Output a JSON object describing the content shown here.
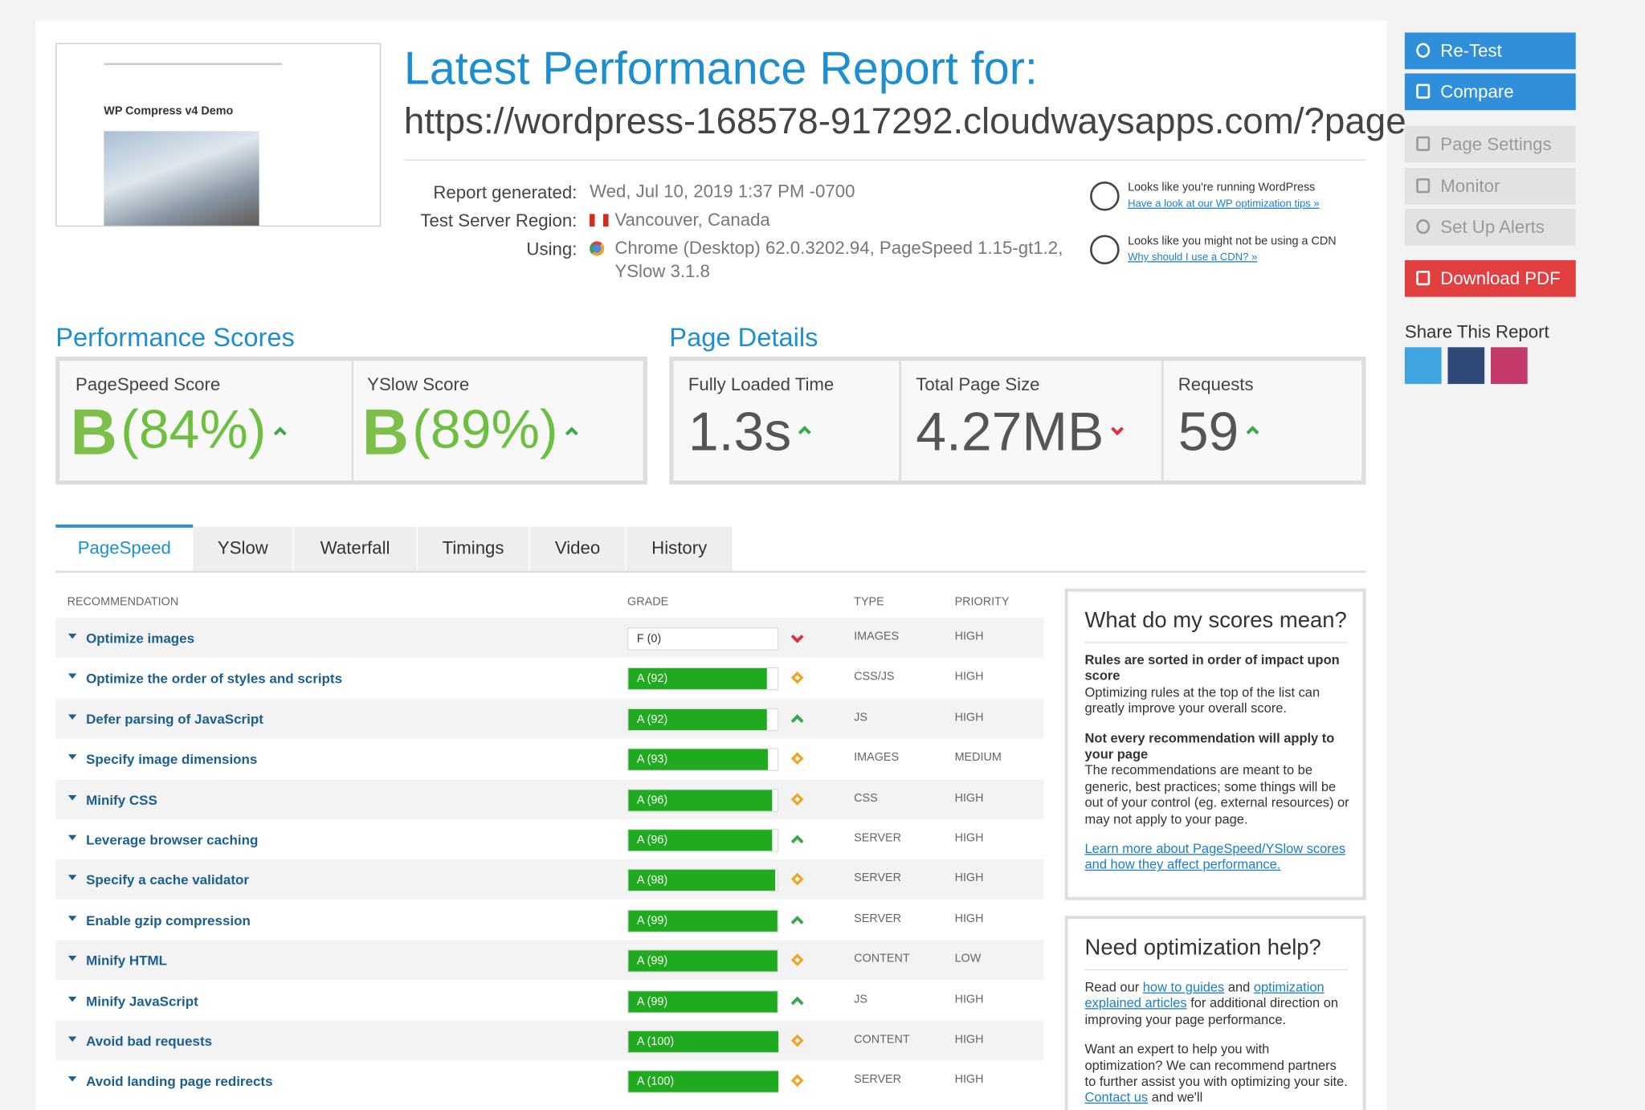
{
  "header": {
    "title": "Latest Performance Report for:",
    "url": "https://wordpress-168578-917292.cloudwaysapps.com/?page…"
  },
  "thumbnail": {
    "site_title": "WP Compress v4 Demo"
  },
  "report": [
    {
      "label": "Report generated:",
      "value": "Wed, Jul 10, 2019 1:37 PM -0700"
    },
    {
      "label": "Test Server Region:",
      "value": "Vancouver, Canada"
    },
    {
      "label": "Using:",
      "value": "Chrome (Desktop) 62.0.3202.94, PageSpeed 1.15-gt1.2, YSlow 3.1.8"
    }
  ],
  "notices": [
    {
      "text": "Looks like you're running WordPress",
      "link": "Have a look at our WP optimization tips »"
    },
    {
      "text": "Looks like you might not be using a CDN",
      "link": "Why should I use a CDN? »"
    }
  ],
  "sidebar": {
    "buttons": [
      "Re-Test",
      "Compare",
      "Page Settings",
      "Monitor",
      "Set Up Alerts",
      "Download PDF"
    ],
    "share": "Share This Report"
  },
  "scores": {
    "title": "Performance Scores",
    "items": [
      {
        "label": "PageSpeed Score",
        "grade": "B",
        "percent": "(84%)",
        "trend": "up"
      },
      {
        "label": "YSlow Score",
        "grade": "B",
        "percent": "(89%)",
        "trend": "up"
      }
    ]
  },
  "details": {
    "title": "Page Details",
    "items": [
      {
        "label": "Fully Loaded Time",
        "value": "1.3s",
        "trend": "up"
      },
      {
        "label": "Total Page Size",
        "value": "4.27MB",
        "trend": "down"
      },
      {
        "label": "Requests",
        "value": "59",
        "trend": "up"
      }
    ]
  },
  "tabs": [
    "PageSpeed",
    "YSlow",
    "Waterfall",
    "Timings",
    "Video",
    "History"
  ],
  "table": {
    "headers": [
      "RECOMMENDATION",
      "GRADE",
      "TYPE",
      "PRIORITY"
    ],
    "rows": [
      {
        "name": "Optimize images",
        "grade": "F (0)",
        "score": 0,
        "trend": "down",
        "type": "IMAGES",
        "priority": "HIGH"
      },
      {
        "name": "Optimize the order of styles and scripts",
        "grade": "A (92)",
        "score": 92,
        "trend": "same",
        "type": "CSS/JS",
        "priority": "HIGH"
      },
      {
        "name": "Defer parsing of JavaScript",
        "grade": "A (92)",
        "score": 92,
        "trend": "up",
        "type": "JS",
        "priority": "HIGH"
      },
      {
        "name": "Specify image dimensions",
        "grade": "A (93)",
        "score": 93,
        "trend": "same",
        "type": "IMAGES",
        "priority": "MEDIUM"
      },
      {
        "name": "Minify CSS",
        "grade": "A (96)",
        "score": 96,
        "trend": "same",
        "type": "CSS",
        "priority": "HIGH"
      },
      {
        "name": "Leverage browser caching",
        "grade": "A (96)",
        "score": 96,
        "trend": "up",
        "type": "SERVER",
        "priority": "HIGH"
      },
      {
        "name": "Specify a cache validator",
        "grade": "A (98)",
        "score": 98,
        "trend": "same",
        "type": "SERVER",
        "priority": "HIGH"
      },
      {
        "name": "Enable gzip compression",
        "grade": "A (99)",
        "score": 99,
        "trend": "up",
        "type": "SERVER",
        "priority": "HIGH"
      },
      {
        "name": "Minify HTML",
        "grade": "A (99)",
        "score": 99,
        "trend": "same",
        "type": "CONTENT",
        "priority": "LOW"
      },
      {
        "name": "Minify JavaScript",
        "grade": "A (99)",
        "score": 99,
        "trend": "up",
        "type": "JS",
        "priority": "HIGH"
      },
      {
        "name": "Avoid bad requests",
        "grade": "A (100)",
        "score": 100,
        "trend": "same",
        "type": "CONTENT",
        "priority": "HIGH"
      },
      {
        "name": "Avoid landing page redirects",
        "grade": "A (100)",
        "score": 100,
        "trend": "same",
        "type": "SERVER",
        "priority": "HIGH"
      }
    ]
  },
  "boxes": [
    {
      "title": "What do my scores mean?",
      "paragraphs": [
        {
          "heading": "Rules are sorted in order of impact upon score",
          "segments": [
            "Optimizing rules at the top of the list can greatly improve your overall score."
          ]
        },
        {
          "heading": "Not every recommendation will apply to your page",
          "segments": [
            "The recommendations are meant to be generic, best practices; some things will be out of your control (eg. external resources) or may not apply to your page."
          ]
        },
        {
          "segments": [
            {
              "link": "Learn more about PageSpeed/YSlow scores and how they affect performance."
            }
          ]
        }
      ]
    },
    {
      "title": "Need optimization help?",
      "paragraphs": [
        {
          "segments": [
            "Read our ",
            {
              "link": "how to guides"
            },
            " and ",
            {
              "link": "optimization explained articles"
            },
            " for additional direction on improving your page performance."
          ]
        },
        {
          "segments": [
            "Want an expert to help you with optimization? We can recommend partners to further assist you with optimizing your site. ",
            {
              "link": "Contact us"
            },
            " and we'll"
          ]
        }
      ]
    }
  ]
}
